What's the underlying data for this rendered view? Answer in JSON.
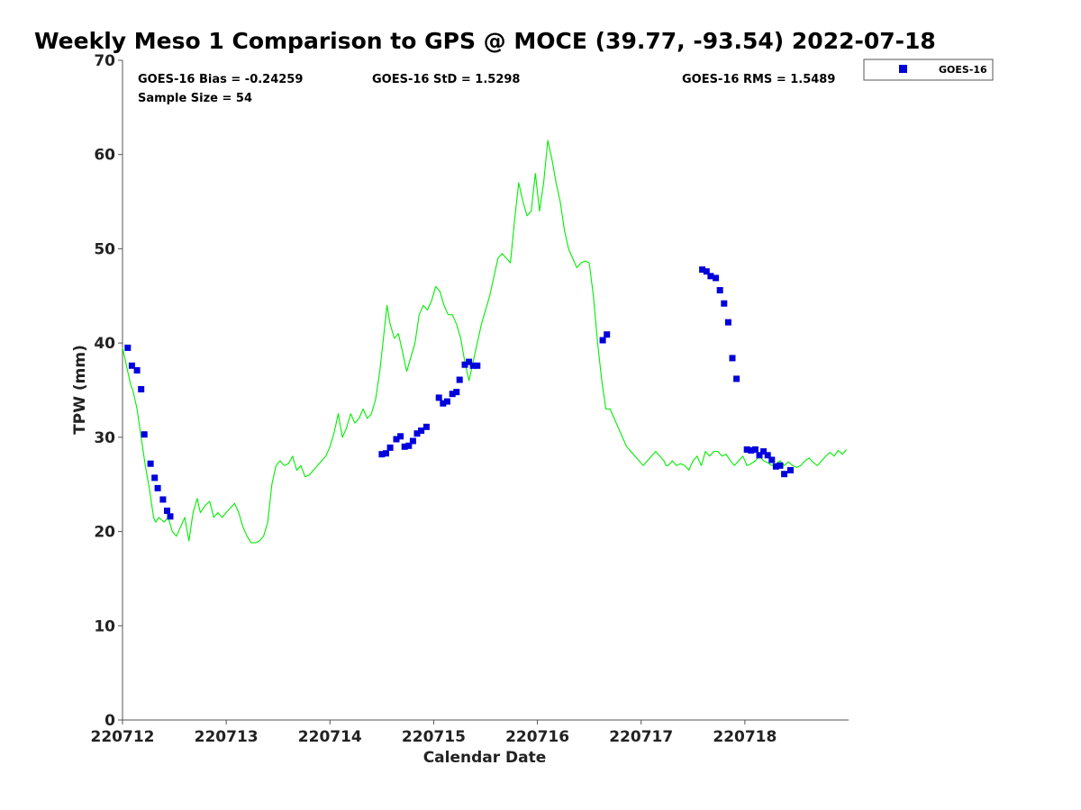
{
  "chart_data": {
    "type": "line+scatter",
    "title": "Weekly Meso 1 Comparison to GPS @ MOCE (39.77, -93.54) 2022-07-18",
    "xlabel": "Calendar Date",
    "ylabel": "TPW (mm)",
    "xlim": [
      0,
      7
    ],
    "ylim": [
      0,
      70
    ],
    "x_ticks": [
      {
        "value": 0,
        "label": "220712"
      },
      {
        "value": 1,
        "label": "220713"
      },
      {
        "value": 2,
        "label": "220714"
      },
      {
        "value": 3,
        "label": "220715"
      },
      {
        "value": 4,
        "label": "220716"
      },
      {
        "value": 5,
        "label": "220717"
      },
      {
        "value": 6,
        "label": "220718"
      }
    ],
    "y_ticks": [
      0,
      10,
      20,
      30,
      40,
      50,
      60,
      70
    ],
    "stats": {
      "bias": "GOES-16 Bias = -0.24259",
      "std": "GOES-16 StD = 1.5298",
      "rms": "GOES-16 RMS = 1.5489",
      "sample_size": "Sample Size = 54"
    },
    "legend": {
      "position": "top-right",
      "entries": [
        {
          "name": "GOES-16",
          "color": "#0000dd",
          "marker": "square"
        }
      ]
    },
    "series": [
      {
        "name": "GPS",
        "kind": "line",
        "color": "#00ee00",
        "x": [
          0.0,
          0.04,
          0.08,
          0.1,
          0.14,
          0.18,
          0.22,
          0.26,
          0.3,
          0.32,
          0.35,
          0.4,
          0.44,
          0.48,
          0.52,
          0.56,
          0.6,
          0.64,
          0.68,
          0.72,
          0.75,
          0.8,
          0.84,
          0.88,
          0.92,
          0.96,
          1.0,
          1.04,
          1.08,
          1.12,
          1.16,
          1.2,
          1.24,
          1.28,
          1.32,
          1.36,
          1.4,
          1.44,
          1.48,
          1.52,
          1.56,
          1.6,
          1.64,
          1.68,
          1.72,
          1.76,
          1.8,
          1.84,
          1.88,
          1.92,
          1.96,
          2.0,
          2.04,
          2.08,
          2.12,
          2.16,
          2.2,
          2.24,
          2.28,
          2.32,
          2.36,
          2.4,
          2.44,
          2.48,
          2.52,
          2.55,
          2.58,
          2.62,
          2.66,
          2.7,
          2.74,
          2.78,
          2.82,
          2.86,
          2.9,
          2.94,
          2.98,
          3.02,
          3.06,
          3.1,
          3.14,
          3.18,
          3.22,
          3.26,
          3.3,
          3.34,
          3.38,
          3.42,
          3.46,
          3.5,
          3.54,
          3.58,
          3.62,
          3.66,
          3.7,
          3.74,
          3.78,
          3.82,
          3.86,
          3.9,
          3.94,
          3.98,
          4.02,
          4.06,
          4.1,
          4.14,
          4.18,
          4.22,
          4.26,
          4.3,
          4.34,
          4.38,
          4.42,
          4.46,
          4.5,
          4.54,
          4.58,
          4.62,
          4.66,
          4.7,
          4.74,
          4.78,
          4.82,
          4.86,
          4.9,
          4.94,
          4.98,
          5.02,
          5.06,
          5.1,
          5.14,
          5.18,
          5.22,
          5.24,
          5.26,
          5.3,
          5.34,
          5.38,
          5.42,
          5.46,
          5.5,
          5.54,
          5.58,
          5.62,
          5.66,
          5.7,
          5.74,
          5.78,
          5.82,
          5.86,
          5.9,
          5.94,
          5.98,
          6.02,
          6.06,
          6.1,
          6.14,
          6.18,
          6.22,
          6.26,
          6.3,
          6.34,
          6.38,
          6.42,
          6.46,
          6.5,
          6.54,
          6.58,
          6.62,
          6.66,
          6.7,
          6.74,
          6.78,
          6.82,
          6.86,
          6.9,
          6.94,
          6.98
        ],
        "y": [
          39.5,
          37.5,
          35.5,
          35.0,
          33.0,
          30.0,
          27.0,
          24.5,
          21.5,
          21.0,
          21.5,
          21.0,
          21.5,
          20.0,
          19.5,
          20.5,
          21.5,
          19.0,
          22.0,
          23.5,
          22.0,
          22.8,
          23.2,
          21.5,
          22.0,
          21.5,
          22.0,
          22.5,
          23.0,
          22.0,
          20.5,
          19.5,
          18.8,
          18.8,
          19.0,
          19.5,
          21.0,
          25.0,
          27.0,
          27.5,
          27.0,
          27.2,
          28.0,
          26.5,
          27.0,
          25.8,
          26.0,
          26.5,
          27.0,
          27.5,
          28.0,
          29.0,
          30.5,
          32.5,
          30.0,
          31.0,
          32.5,
          31.5,
          32.0,
          33.0,
          32.0,
          32.5,
          34.0,
          37.0,
          41.0,
          44.0,
          42.0,
          40.5,
          41.0,
          39.0,
          37.0,
          38.5,
          40.0,
          43.0,
          44.0,
          43.5,
          44.5,
          46.0,
          45.5,
          44.0,
          43.0,
          43.0,
          42.0,
          40.5,
          38.0,
          36.0,
          38.0,
          40.0,
          42.0,
          43.5,
          45.0,
          47.0,
          49.0,
          49.5,
          49.0,
          48.5,
          53.0,
          57.0,
          55.0,
          53.5,
          54.0,
          58.0,
          54.0,
          57.0,
          61.5,
          59.5,
          57.0,
          55.0,
          52.0,
          50.0,
          49.0,
          48.0,
          48.5,
          48.7,
          48.5,
          45.0,
          40.0,
          36.0,
          33.0,
          33.0,
          32.0,
          31.0,
          30.0,
          29.0,
          28.5,
          28.0,
          27.5,
          27.0,
          27.5,
          28.0,
          28.5,
          28.0,
          27.5,
          27.0,
          27.0,
          27.5,
          27.0,
          27.2,
          27.0,
          26.5,
          27.5,
          28.0,
          27.0,
          28.5,
          28.0,
          28.5,
          28.5,
          28.0,
          28.2,
          27.5,
          27.0,
          27.5,
          28.0,
          27.0,
          27.2,
          27.5,
          28.0,
          27.5,
          27.3,
          27.0,
          27.2,
          27.5,
          27.0,
          27.4,
          27.0,
          26.8,
          27.0,
          27.5,
          27.8,
          27.3,
          27.0,
          27.5,
          28.0,
          28.4,
          28.0,
          28.6,
          28.2,
          28.7
        ]
      },
      {
        "name": "GOES-16",
        "kind": "scatter",
        "color": "#0000dd",
        "x": [
          0.05,
          0.09,
          0.14,
          0.18,
          0.21,
          0.27,
          0.31,
          0.34,
          0.39,
          0.43,
          0.46,
          3.05,
          3.09,
          3.13,
          3.18,
          3.22,
          3.25,
          3.3,
          3.34,
          3.38,
          3.42,
          2.5,
          2.54,
          2.58,
          2.64,
          2.68,
          2.72,
          2.76,
          2.8,
          2.84,
          2.88,
          2.93,
          4.63,
          4.67,
          5.59,
          5.63,
          5.67,
          5.72,
          5.76,
          5.8,
          5.84,
          5.88,
          5.92,
          6.02,
          6.06,
          6.1,
          6.14,
          6.18,
          6.22,
          6.26,
          6.3,
          6.34,
          6.38,
          6.44
        ],
        "y": [
          39.5,
          37.6,
          37.1,
          35.1,
          30.3,
          27.2,
          25.7,
          24.6,
          23.4,
          22.2,
          21.6,
          34.2,
          33.6,
          33.8,
          34.6,
          34.8,
          36.1,
          37.7,
          38.0,
          37.6,
          37.6,
          28.2,
          28.3,
          28.9,
          29.8,
          30.1,
          29.0,
          29.1,
          29.6,
          30.4,
          30.7,
          31.1,
          40.3,
          40.9,
          47.8,
          47.6,
          47.1,
          46.9,
          45.6,
          44.2,
          42.2,
          38.4,
          36.2,
          28.7,
          28.6,
          28.7,
          28.1,
          28.5,
          28.1,
          27.6,
          26.9,
          27.0,
          26.1,
          26.5
        ]
      }
    ]
  }
}
